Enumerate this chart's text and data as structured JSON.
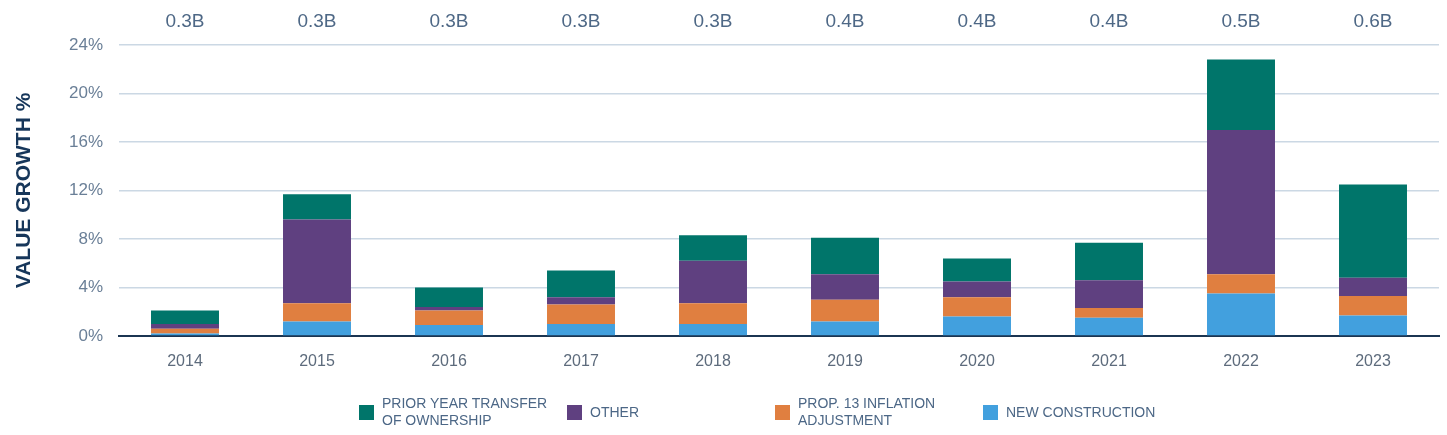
{
  "chart_data": {
    "type": "bar",
    "stacked": true,
    "ylabel": "VALUE GROWTH %",
    "categories": [
      "2014",
      "2015",
      "2016",
      "2017",
      "2018",
      "2019",
      "2020",
      "2021",
      "2022",
      "2023"
    ],
    "series": [
      {
        "name": "NEW CONSTRUCTION",
        "color": "#42a0de",
        "values": [
          0.2,
          1.2,
          0.9,
          1.0,
          1.0,
          1.2,
          1.6,
          1.5,
          3.5,
          1.7
        ]
      },
      {
        "name": "PROP. 13 INFLATION ADJUSTMENT",
        "color": "#e07f40",
        "values": [
          0.4,
          1.5,
          1.2,
          1.6,
          1.7,
          1.8,
          1.6,
          0.8,
          1.6,
          1.6
        ]
      },
      {
        "name": "OTHER",
        "color": "#5f4080",
        "values": [
          0.4,
          6.9,
          0.3,
          0.6,
          3.5,
          2.1,
          1.3,
          2.3,
          11.9,
          1.5
        ]
      },
      {
        "name": "PRIOR YEAR TRANSFER OF OWNERSHIP",
        "color": "#00756a",
        "values": [
          1.1,
          2.1,
          1.6,
          2.2,
          2.1,
          3.0,
          1.9,
          3.1,
          5.8,
          7.7
        ]
      }
    ],
    "ylim": [
      0,
      24
    ],
    "yticks": [
      {
        "value": 0,
        "label": "0%"
      },
      {
        "value": 4,
        "label": "4%"
      },
      {
        "value": 8,
        "label": "8%"
      },
      {
        "value": 12,
        "label": "12%"
      },
      {
        "value": 16,
        "label": "16%"
      },
      {
        "value": 20,
        "label": "20%"
      },
      {
        "value": 24,
        "label": "24%"
      }
    ],
    "annotations": [
      "0.3B",
      "0.3B",
      "0.3B",
      "0.3B",
      "0.3B",
      "0.4B",
      "0.4B",
      "0.4B",
      "0.5B",
      "0.6B"
    ],
    "grid": "y",
    "legend": "bottom"
  }
}
